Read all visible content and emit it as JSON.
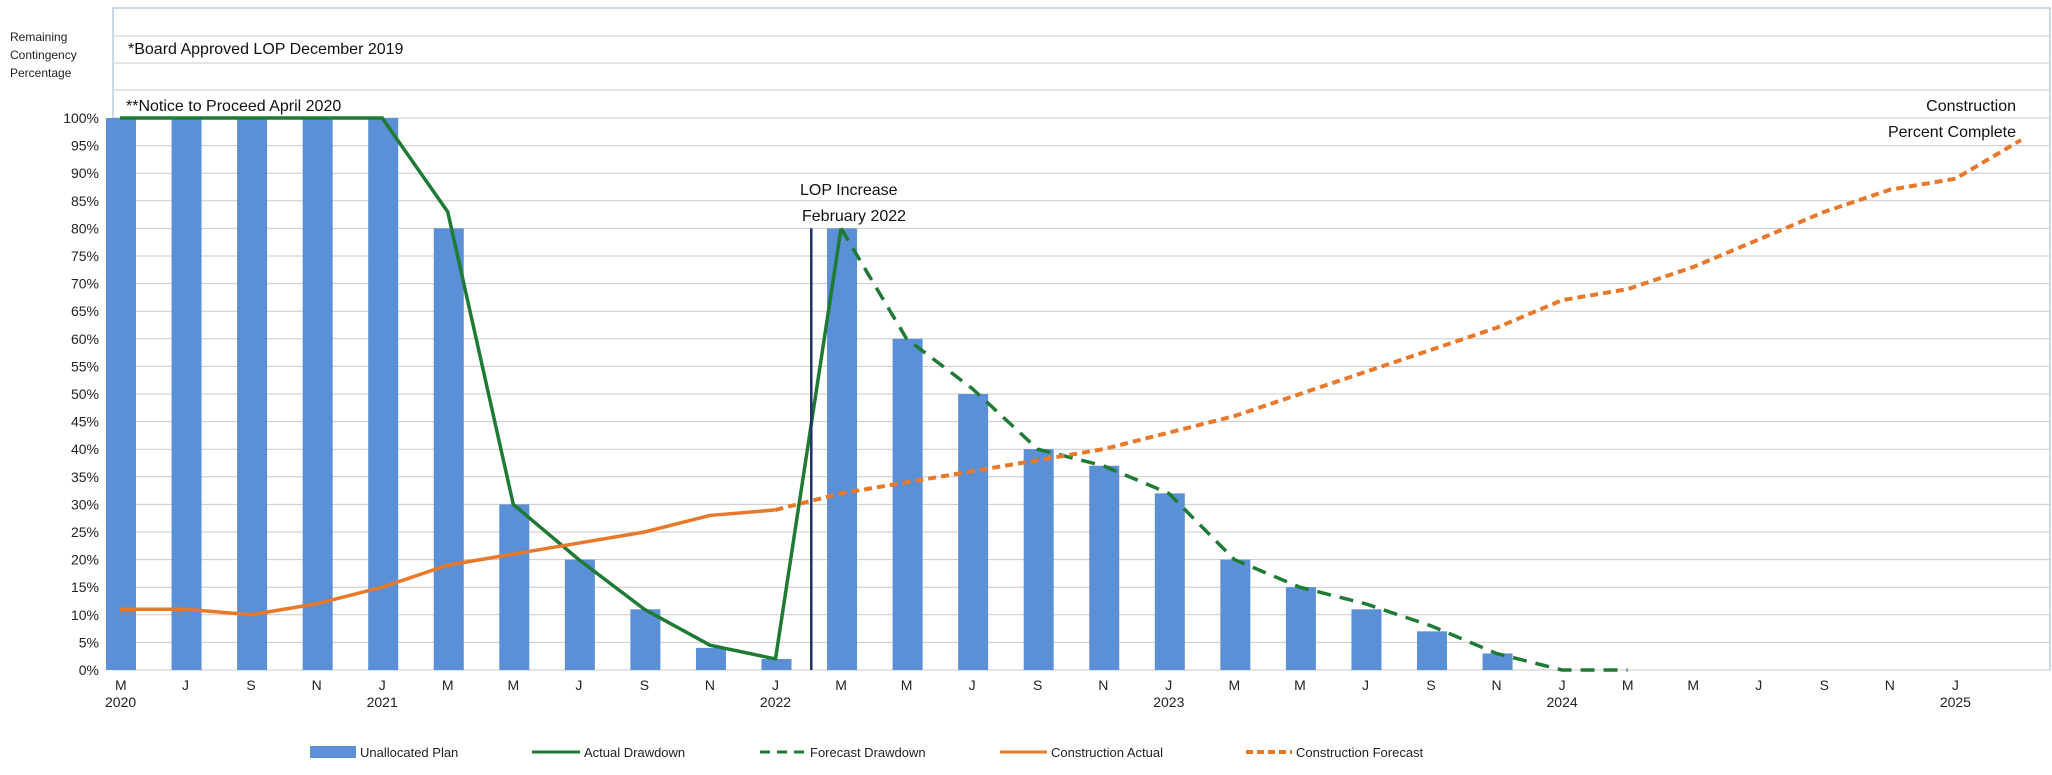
{
  "chart_data": {
    "type": "bar",
    "ylabel": [
      "Remaining",
      "Contingency",
      "Percentage"
    ],
    "ylim": [
      0,
      100
    ],
    "y_ticks": [
      "0%",
      "5%",
      "10%",
      "15%",
      "20%",
      "25%",
      "30%",
      "35%",
      "40%",
      "45%",
      "50%",
      "55%",
      "60%",
      "65%",
      "70%",
      "75%",
      "80%",
      "85%",
      "90%",
      "95%",
      "100%"
    ],
    "x_tick_labels": [
      "M",
      "J",
      "S",
      "N",
      "J",
      "M",
      "M",
      "J",
      "S",
      "N",
      "J",
      "M",
      "M",
      "J",
      "S",
      "N",
      "J",
      "M",
      "M",
      "J",
      "S",
      "N",
      "J",
      "M",
      "M",
      "J",
      "S",
      "N",
      "J"
    ],
    "year_labels": [
      {
        "label": "2020",
        "index": 0
      },
      {
        "label": "2021",
        "index": 4
      },
      {
        "label": "2022",
        "index": 10
      },
      {
        "label": "2023",
        "index": 16
      },
      {
        "label": "2024",
        "index": 22
      },
      {
        "label": "2025",
        "index": 28
      }
    ],
    "annotations": {
      "board": "*Board Approved LOP December 2019",
      "ntp": "**Notice to Proceed April 2020",
      "lop_line1": "LOP Increase",
      "lop_line2": "February 2022",
      "construction_line1": "Construction",
      "construction_line2": "Percent Complete"
    },
    "lop_increase_index": 10.5,
    "series": [
      {
        "name": "Unallocated Plan",
        "kind": "bar",
        "color": "#5B8FD6",
        "values": [
          100,
          100,
          100,
          100,
          100,
          80,
          30,
          20,
          11,
          4,
          2,
          80,
          60,
          50,
          40,
          37,
          32,
          20,
          15,
          11,
          7,
          3,
          null,
          null,
          null,
          null,
          null,
          null,
          null
        ]
      },
      {
        "name": "Actual Drawdown",
        "kind": "line",
        "color": "#1E7A34",
        "x": [
          0,
          1,
          2,
          3,
          4,
          5,
          6,
          7,
          8,
          9,
          10,
          11
        ],
        "y": [
          100,
          100,
          100,
          100,
          100,
          83,
          30,
          20,
          11,
          4.5,
          2,
          80
        ]
      },
      {
        "name": "Forecast Drawdown",
        "kind": "dashed-line",
        "color": "#1E7A34",
        "x": [
          11,
          12,
          13,
          14,
          15,
          16,
          17,
          18,
          19,
          20,
          21,
          22,
          23
        ],
        "y": [
          80,
          60,
          51,
          40,
          37,
          32,
          20,
          15,
          12,
          8,
          3,
          0,
          0
        ]
      },
      {
        "name": "Construction  Actual",
        "kind": "line",
        "color": "#E8792B",
        "x": [
          0,
          1,
          2,
          3,
          4,
          5,
          6,
          7,
          8,
          9,
          10
        ],
        "y": [
          11,
          11,
          10,
          12,
          15,
          19,
          21,
          23,
          25,
          28,
          29
        ]
      },
      {
        "name": "Construction Forecast",
        "kind": "dashed-line",
        "color": "#E8792B",
        "x": [
          10,
          11,
          12,
          13,
          14,
          15,
          16,
          17,
          18,
          19,
          20,
          21,
          22,
          23,
          24,
          25,
          26,
          27,
          28,
          29
        ],
        "y": [
          29,
          32,
          34,
          36,
          38,
          40,
          43,
          46,
          50,
          54,
          58,
          62,
          67,
          69,
          73,
          78,
          83,
          87,
          89,
          96
        ]
      }
    ],
    "legend": [
      "Unallocated Plan",
      "Actual Drawdown",
      "Forecast Drawdown",
      "Construction  Actual",
      "Construction Forecast"
    ]
  }
}
